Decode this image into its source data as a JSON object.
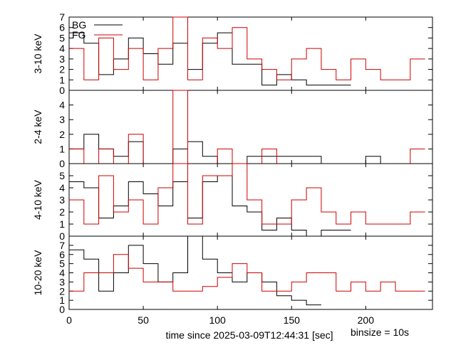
{
  "figure": {
    "xlabel": "time since 2025-03-09T12:44:31 [sec]",
    "binsize_note": "binsize = 10s",
    "x_ticks": [
      0,
      50,
      100,
      150,
      200
    ],
    "legend": {
      "bg": "BG",
      "fg": "FG"
    }
  },
  "colors": {
    "bg": "#000000",
    "fg": "#cc0000",
    "frame": "#000000"
  },
  "chart_data": [
    {
      "type": "line",
      "ylabel": "3-10 keV",
      "xlim": [
        0,
        245
      ],
      "ylim": [
        0,
        7
      ],
      "y_ticks": [
        0,
        1,
        2,
        3,
        4,
        5,
        6,
        7
      ],
      "grid": false,
      "legend_position": "top-left",
      "bin_edges_sec": [
        0,
        10,
        20,
        30,
        40,
        50,
        60,
        70,
        80,
        90,
        100,
        110,
        120,
        130,
        140,
        150,
        160,
        170,
        180,
        190,
        200,
        210,
        220,
        230,
        240
      ],
      "series": [
        {
          "name": "BG",
          "values": [
            5.5,
            4.5,
            1.5,
            3.0,
            5.0,
            3.5,
            2.5,
            4.5,
            2.0,
            4.5,
            5.5,
            2.5,
            2.5,
            0.5,
            1.5,
            1.0,
            0.5,
            0.5,
            0.5,
            null,
            null,
            null,
            null,
            null
          ]
        },
        {
          "name": "FG",
          "values": [
            4.0,
            1.0,
            5.0,
            2.0,
            4.0,
            1.0,
            4.0,
            7.0,
            1.0,
            5.0,
            4.0,
            6.0,
            3.0,
            2.0,
            1.0,
            3.0,
            4.0,
            2.0,
            1.0,
            3.0,
            2.0,
            1.0,
            1.0,
            3.0
          ]
        }
      ]
    },
    {
      "type": "line",
      "ylabel": "2-4 keV",
      "xlim": [
        0,
        245
      ],
      "ylim": [
        0,
        5
      ],
      "y_ticks": [
        0,
        1,
        2,
        3,
        4
      ],
      "grid": false,
      "bin_edges_sec": [
        0,
        10,
        20,
        30,
        40,
        50,
        60,
        70,
        80,
        90,
        100,
        110,
        120,
        130,
        140,
        150,
        160,
        170,
        180,
        190,
        200,
        210,
        220,
        230,
        240
      ],
      "series": [
        {
          "name": "BG",
          "values": [
            1.0,
            2.0,
            1.0,
            0.5,
            1.5,
            0.0,
            0.0,
            1.0,
            1.5,
            0.5,
            0.0,
            0.0,
            0.5,
            0.5,
            0.5,
            0.5,
            0.5,
            0.0,
            0.0,
            0.0,
            0.5,
            0.0,
            0.0,
            0.0
          ]
        },
        {
          "name": "FG",
          "values": [
            1.0,
            0.0,
            1.0,
            0.0,
            2.0,
            0.0,
            0.0,
            5.0,
            0.0,
            0.0,
            1.0,
            0.0,
            0.0,
            1.0,
            0.0,
            0.0,
            0.0,
            0.0,
            0.0,
            0.0,
            0.0,
            0.0,
            0.0,
            1.0
          ]
        }
      ]
    },
    {
      "type": "line",
      "ylabel": "4-10 keV",
      "xlim": [
        0,
        245
      ],
      "ylim": [
        0,
        6
      ],
      "y_ticks": [
        0,
        1,
        2,
        3,
        4,
        5
      ],
      "grid": false,
      "bin_edges_sec": [
        0,
        10,
        20,
        30,
        40,
        50,
        60,
        70,
        80,
        90,
        100,
        110,
        120,
        130,
        140,
        150,
        160,
        170,
        180,
        190,
        200,
        210,
        220,
        230,
        240
      ],
      "series": [
        {
          "name": "BG",
          "values": [
            4.5,
            4.0,
            1.5,
            2.5,
            4.5,
            3.5,
            2.5,
            4.5,
            1.5,
            4.5,
            5.0,
            2.5,
            2.0,
            0.5,
            1.5,
            0.5,
            0.0,
            0.5,
            0.5,
            null,
            null,
            null,
            null,
            null
          ]
        },
        {
          "name": "FG",
          "values": [
            3.0,
            1.0,
            5.0,
            2.0,
            3.0,
            1.0,
            4.0,
            6.0,
            1.0,
            5.0,
            5.0,
            6.0,
            3.0,
            1.0,
            1.0,
            3.0,
            4.0,
            2.0,
            1.0,
            2.0,
            1.0,
            1.0,
            1.0,
            2.0
          ]
        }
      ]
    },
    {
      "type": "line",
      "ylabel": "10-20 keV",
      "xlim": [
        0,
        245
      ],
      "ylim": [
        0,
        8
      ],
      "y_ticks": [
        0,
        1,
        2,
        3,
        4,
        5,
        6,
        7
      ],
      "grid": false,
      "bin_edges_sec": [
        0,
        10,
        20,
        30,
        40,
        50,
        60,
        70,
        80,
        90,
        100,
        110,
        120,
        130,
        140,
        150,
        160,
        170,
        180,
        190,
        200,
        210,
        220,
        230,
        240
      ],
      "series": [
        {
          "name": "BG",
          "values": [
            6.5,
            5.5,
            2.0,
            4.0,
            7.0,
            5.0,
            3.0,
            4.0,
            8.0,
            5.5,
            4.0,
            3.0,
            4.0,
            3.0,
            1.5,
            1.0,
            0.5,
            null,
            null,
            null,
            null,
            null,
            null,
            null
          ]
        },
        {
          "name": "FG",
          "values": [
            2.0,
            4.0,
            4.0,
            6.0,
            4.5,
            3.0,
            3.0,
            2.0,
            2.0,
            2.5,
            3.5,
            5.0,
            4.0,
            2.0,
            2.0,
            3.0,
            4.0,
            4.0,
            2.0,
            3.0,
            2.0,
            3.0,
            2.0,
            2.0
          ]
        }
      ]
    }
  ]
}
